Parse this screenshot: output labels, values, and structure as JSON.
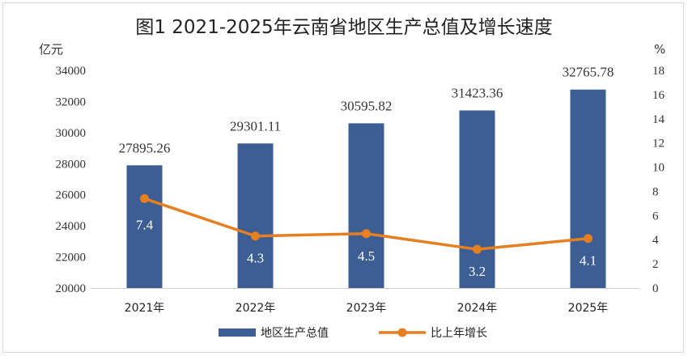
{
  "chart_data": {
    "type": "bar",
    "title": "图1  2021-2025年云南省地区生产总值及增长速度",
    "categories": [
      "2021年",
      "2022年",
      "2023年",
      "2024年",
      "2025年"
    ],
    "ylabel_left": "亿元",
    "ylabel_right": "%",
    "ylim_left": [
      20000,
      34000
    ],
    "yticks_left": [
      "20000",
      "22000",
      "24000",
      "26000",
      "28000",
      "30000",
      "32000",
      "34000"
    ],
    "ylim_right": [
      0,
      18
    ],
    "yticks_right": [
      "0",
      "2",
      "4",
      "6",
      "8",
      "10",
      "12",
      "14",
      "16",
      "18"
    ],
    "grid": false,
    "legend_position": "bottom",
    "series": [
      {
        "name": "地区生产总值",
        "type": "bar",
        "axis": "left",
        "color": "#3d5e93",
        "values": [
          27895.26,
          29301.11,
          30595.82,
          31423.36,
          32765.78
        ],
        "labels": [
          "27895.26",
          "29301.11",
          "30595.82",
          "31423.36",
          "32765.78"
        ]
      },
      {
        "name": "比上年增长",
        "type": "line",
        "axis": "right",
        "color": "#e67e22",
        "values": [
          7.4,
          4.3,
          4.5,
          3.2,
          4.1
        ],
        "labels": [
          "7.4",
          "4.3",
          "4.5",
          "3.2",
          "4.1"
        ]
      }
    ]
  }
}
